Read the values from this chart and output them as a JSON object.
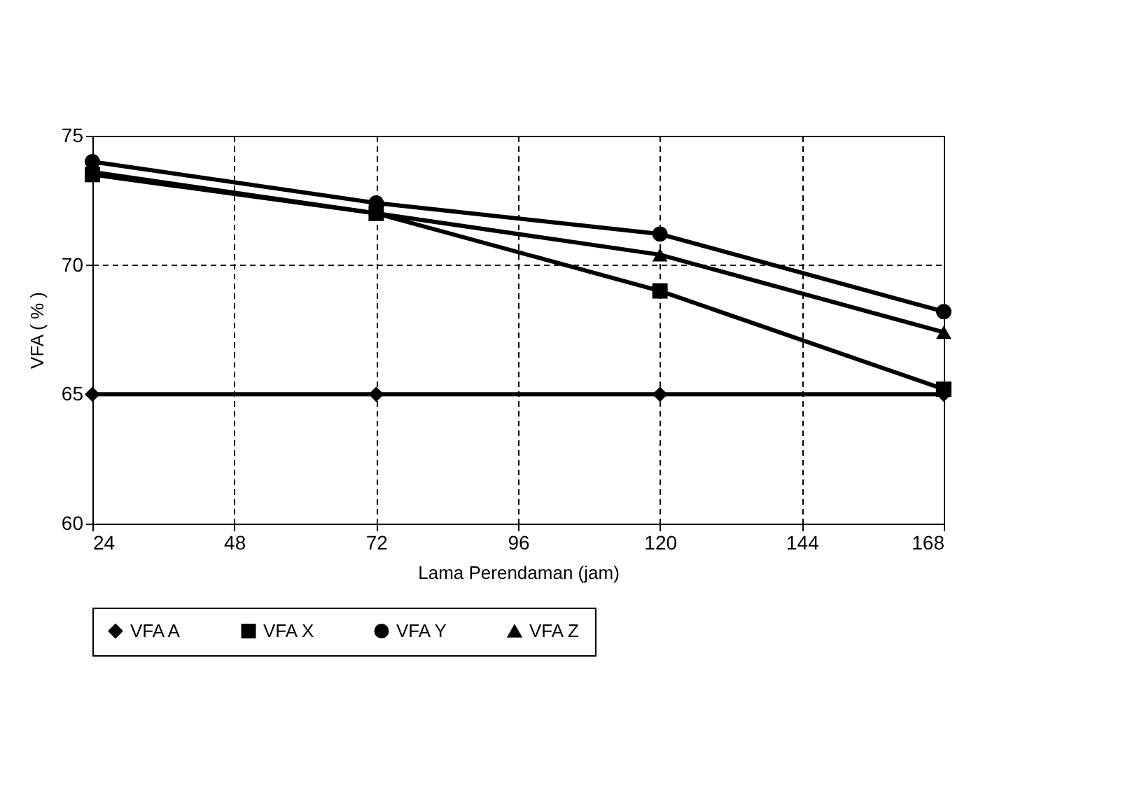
{
  "chart_data": {
    "type": "line",
    "xlabel": "Lama Perendaman (jam)",
    "ylabel": "VFA ( % )",
    "x": [
      24,
      72,
      120,
      168
    ],
    "xlim": [
      24,
      168
    ],
    "xticks": [
      24,
      48,
      72,
      96,
      120,
      144,
      168
    ],
    "ylim": [
      60,
      75
    ],
    "yticks": [
      60,
      65,
      70,
      75
    ],
    "grid": true,
    "legend": "bottom",
    "line_style": "solid",
    "series": [
      {
        "name": "VFA A",
        "color": "#000000",
        "marker": "diamond",
        "values": [
          65,
          65,
          65,
          65
        ]
      },
      {
        "name": "VFA X",
        "color": "#000000",
        "marker": "square",
        "values": [
          73.5,
          72.0,
          69.0,
          65.2
        ]
      },
      {
        "name": "VFA Y",
        "color": "#000000",
        "marker": "circle",
        "values": [
          74.0,
          72.4,
          71.2,
          68.2
        ]
      },
      {
        "name": "VFA Z",
        "color": "#000000",
        "marker": "triangle",
        "values": [
          73.6,
          72.0,
          70.4,
          67.4
        ]
      }
    ]
  }
}
